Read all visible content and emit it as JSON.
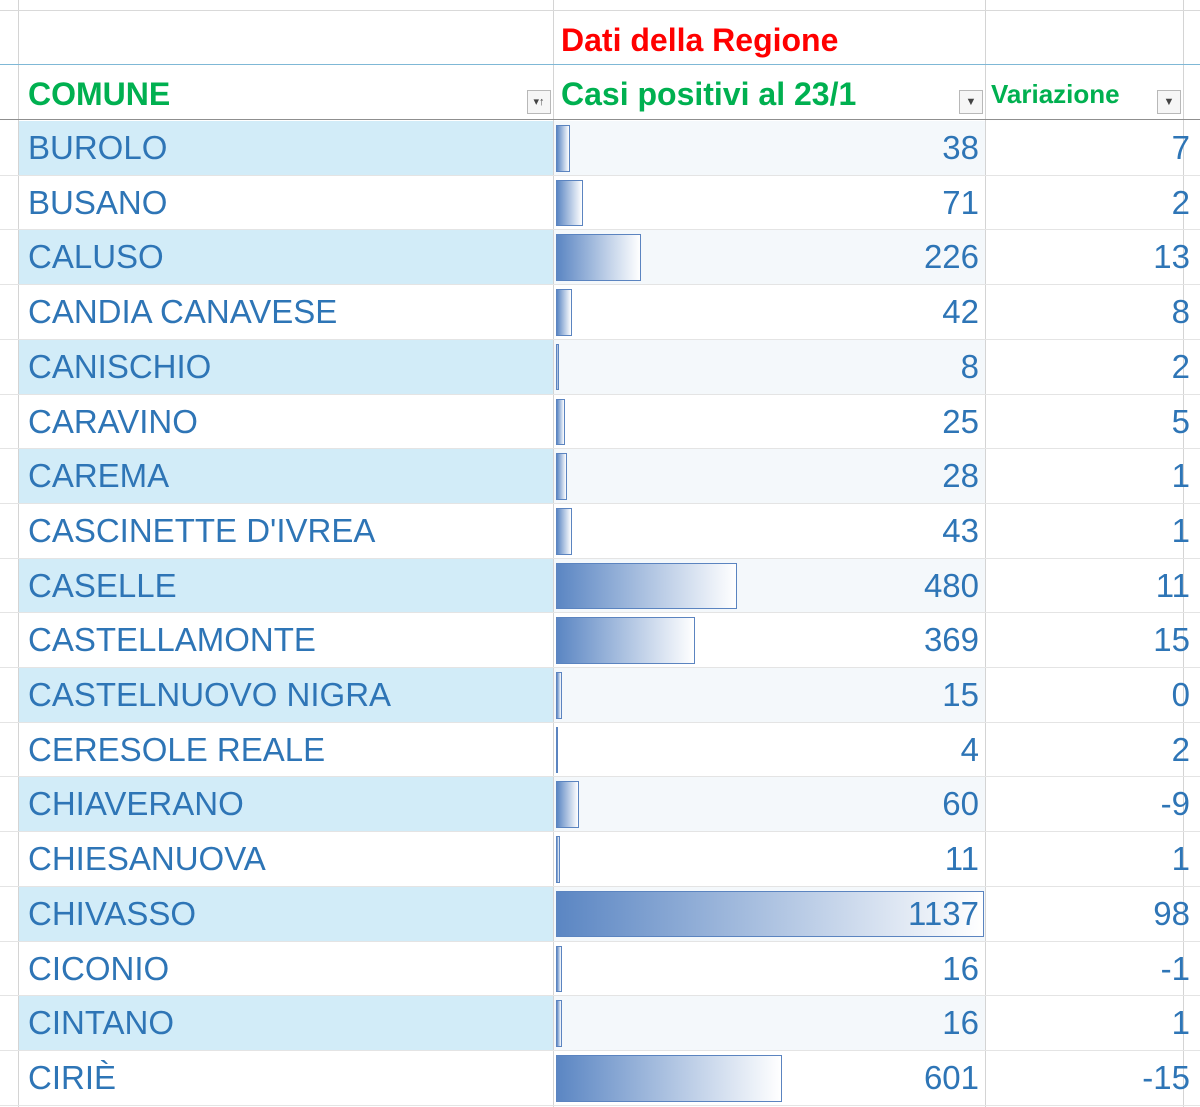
{
  "title": "Dati della Regione",
  "headers": {
    "comune": "COMUNE",
    "casi": "Casi positivi al 23/1",
    "variazione": "Variazione"
  },
  "filter_icons": {
    "comune": "sort-filter-icon",
    "casi": "dropdown-filter-icon",
    "variazione": "dropdown-filter-icon"
  },
  "colors": {
    "title": "#ff0000",
    "header": "#00b050",
    "cell_text": "#2e75b6",
    "band": "#d2ecf8",
    "databar": "#5b86c3"
  },
  "databar_max": 1137,
  "rows": [
    {
      "comune": "BUROLO",
      "casi": "38",
      "variazione": "7"
    },
    {
      "comune": "BUSANO",
      "casi": "71",
      "variazione": "2"
    },
    {
      "comune": "CALUSO",
      "casi": "226",
      "variazione": "13"
    },
    {
      "comune": "CANDIA CANAVESE",
      "casi": "42",
      "variazione": "8"
    },
    {
      "comune": "CANISCHIO",
      "casi": "8",
      "variazione": "2"
    },
    {
      "comune": "CARAVINO",
      "casi": "25",
      "variazione": "5"
    },
    {
      "comune": "CAREMA",
      "casi": "28",
      "variazione": "1"
    },
    {
      "comune": "CASCINETTE D'IVREA",
      "casi": "43",
      "variazione": "1"
    },
    {
      "comune": "CASELLE",
      "casi": "480",
      "variazione": "11"
    },
    {
      "comune": "CASTELLAMONTE",
      "casi": "369",
      "variazione": "15"
    },
    {
      "comune": "CASTELNUOVO NIGRA",
      "casi": "15",
      "variazione": "0"
    },
    {
      "comune": "CERESOLE REALE",
      "casi": "4",
      "variazione": "2"
    },
    {
      "comune": "CHIAVERANO",
      "casi": "60",
      "variazione": "-9"
    },
    {
      "comune": "CHIESANUOVA",
      "casi": "11",
      "variazione": "1"
    },
    {
      "comune": "CHIVASSO",
      "casi": "1137",
      "variazione": "98"
    },
    {
      "comune": "CICONIO",
      "casi": "16",
      "variazione": "-1"
    },
    {
      "comune": "CINTANO",
      "casi": "16",
      "variazione": "1"
    },
    {
      "comune": "CIRIÈ",
      "casi": "601",
      "variazione": "-15"
    }
  ]
}
